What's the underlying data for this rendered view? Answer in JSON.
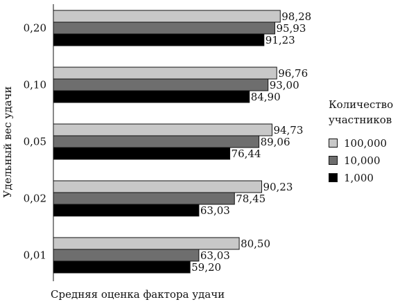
{
  "chart_data": {
    "type": "bar",
    "orientation": "horizontal",
    "title": "",
    "xlabel": "Средняя оценка фактора удачи",
    "ylabel": "Удельный вес удачи",
    "categories": [
      "0,20",
      "0,10",
      "0,05",
      "0,02",
      "0,01"
    ],
    "series": [
      {
        "name": "100,000",
        "color": "#c8c8c8",
        "values": [
          98.28,
          96.76,
          94.73,
          90.23,
          80.5
        ],
        "labels": [
          "98,28",
          "96,76",
          "94,73",
          "90,23",
          "80,50"
        ]
      },
      {
        "name": "10,000",
        "color": "#6e6e6e",
        "values": [
          95.93,
          93.0,
          89.06,
          78.45,
          63.03
        ],
        "labels": [
          "95,93",
          "93,00",
          "89,06",
          "78,45",
          "63,03"
        ]
      },
      {
        "name": "1,000",
        "color": "#000000",
        "values": [
          91.23,
          84.9,
          76.44,
          63.03,
          59.2
        ],
        "labels": [
          "91,23",
          "84,90",
          "76,44",
          "63,03",
          "59,20"
        ]
      }
    ],
    "xlim": [
      0,
      100
    ],
    "grid": false,
    "legend": {
      "title": "Количество участников",
      "placement": "right"
    }
  }
}
